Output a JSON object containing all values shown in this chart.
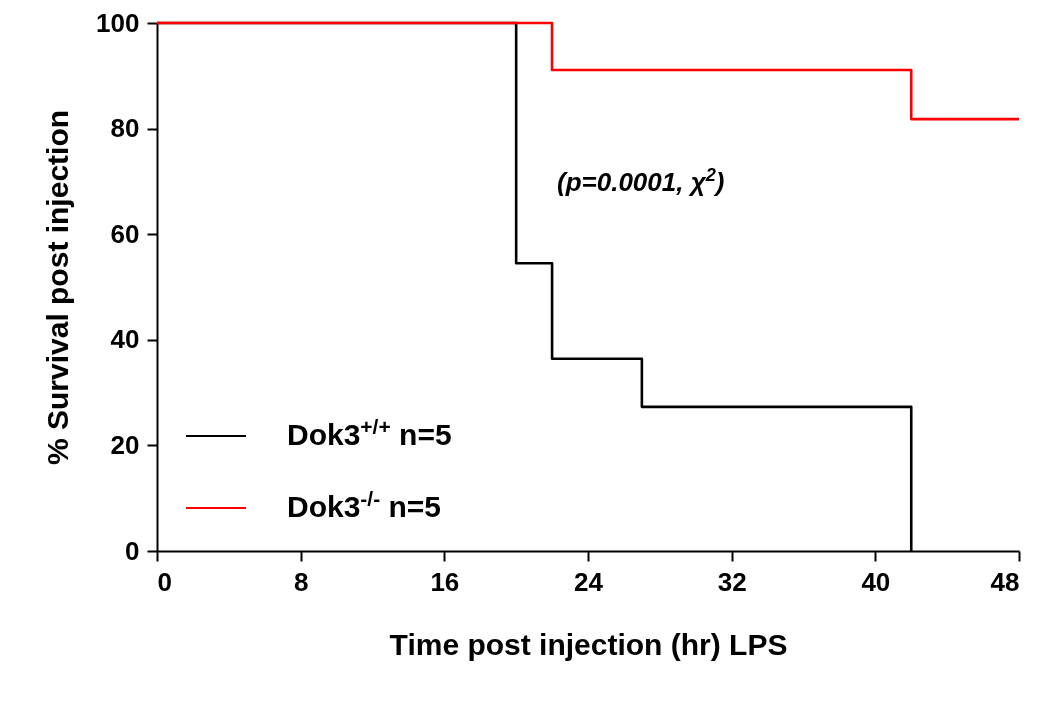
{
  "chart_data": {
    "type": "step",
    "xlabel": "Time post injection (hr) LPS",
    "ylabel": "% Survival post injection",
    "xlim": [
      0,
      48
    ],
    "xticks": [
      0,
      8,
      16,
      24,
      32,
      40,
      48
    ],
    "ylim": [
      0,
      100
    ],
    "yticks": [
      0,
      20,
      40,
      60,
      80,
      100
    ],
    "legend": "bottom left",
    "line_style": "solid",
    "annotations": [
      "(p=0.0001, χ$^{2}$)"
    ],
    "series": [
      {
        "name": "Dok3$^{+/+}$ n=5",
        "color": "#000000",
        "x": [
          0,
          20,
          22,
          27,
          42
        ],
        "values": [
          100,
          54.5,
          36.4,
          27.3,
          0
        ]
      },
      {
        "name": "Dok3$^{-/-}$  n=5",
        "color": "#ff0000",
        "x": [
          0,
          22,
          42,
          48
        ],
        "values": [
          100,
          91.1,
          81.8,
          81.8
        ]
      }
    ]
  }
}
